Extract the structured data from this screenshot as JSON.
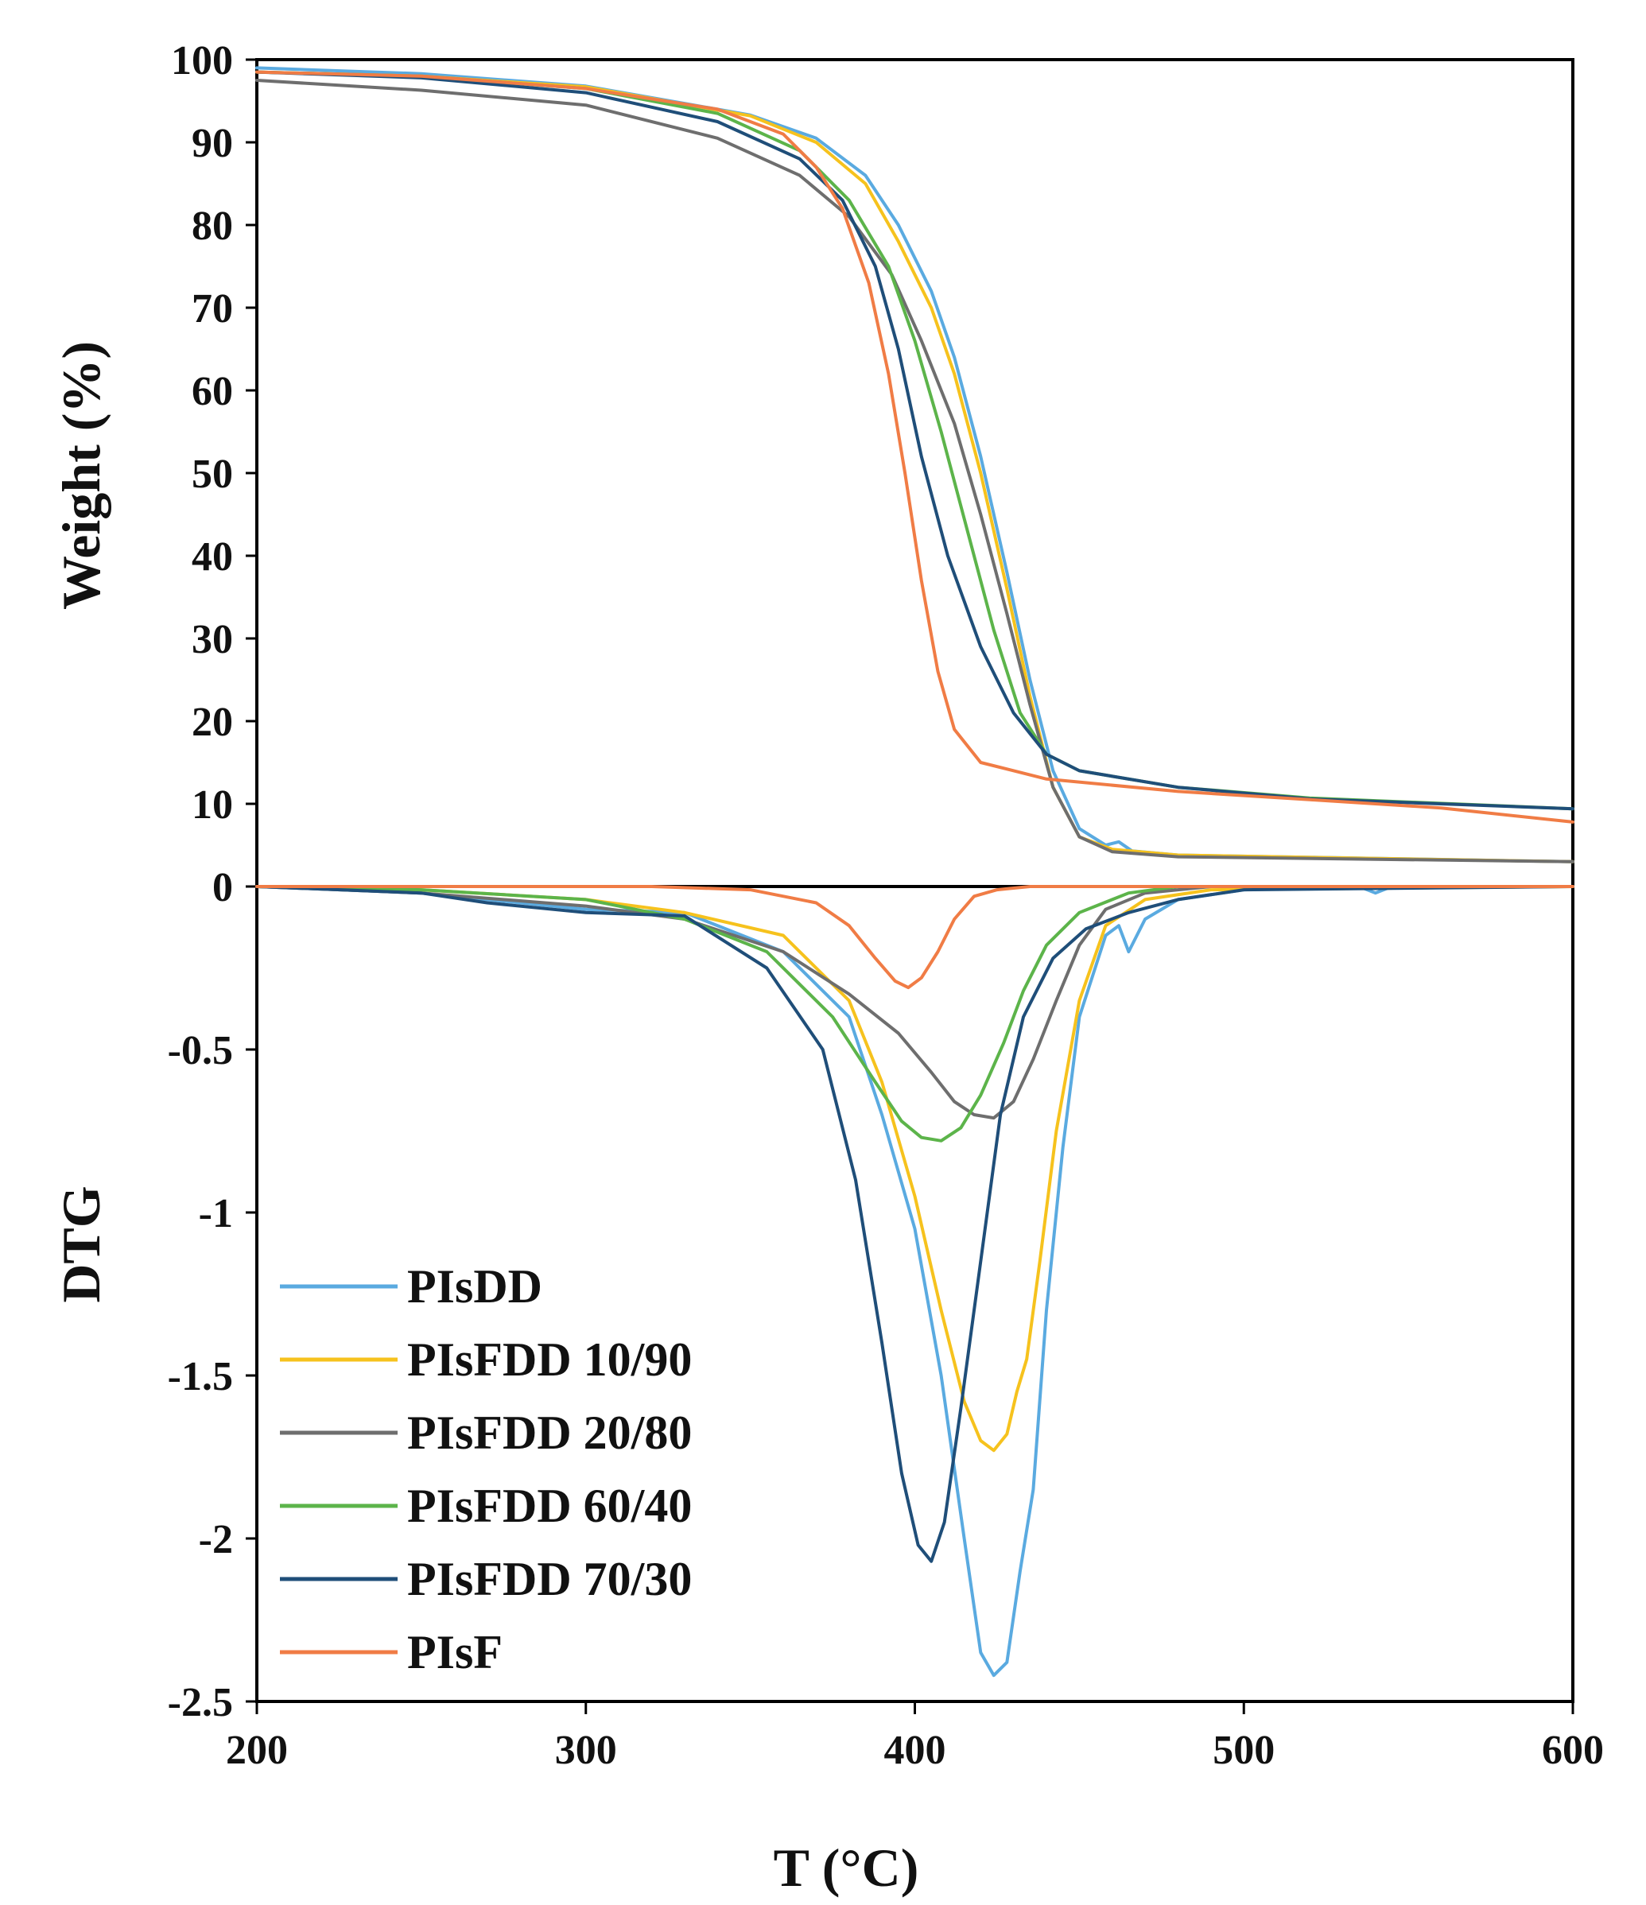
{
  "chart_data": {
    "type": "line",
    "x_label": "T (°C)",
    "x_range": [
      200,
      600
    ],
    "x_ticks": [
      "200",
      "300",
      "400",
      "500",
      "600"
    ],
    "panels": {
      "weight": {
        "ylabel": "Weight (%)",
        "ylim": [
          0,
          100
        ],
        "y_ticks": [
          "0",
          "10",
          "20",
          "30",
          "40",
          "50",
          "60",
          "70",
          "80",
          "90",
          "100"
        ]
      },
      "dtg": {
        "ylabel": "DTG",
        "ylim": [
          -2.5,
          0
        ],
        "y_ticks": [
          "0",
          "-0.5",
          "-1",
          "-1.5",
          "-2",
          "-2.5"
        ]
      }
    },
    "series": [
      {
        "name": "PIsDD",
        "color": "#5aaae0",
        "weight": [
          [
            200,
            99
          ],
          [
            250,
            98.3
          ],
          [
            300,
            96.8
          ],
          [
            350,
            93.3
          ],
          [
            370,
            90.5
          ],
          [
            385,
            86
          ],
          [
            395,
            80
          ],
          [
            405,
            72
          ],
          [
            412,
            64
          ],
          [
            420,
            52
          ],
          [
            428,
            38
          ],
          [
            435,
            25
          ],
          [
            442,
            14
          ],
          [
            450,
            7
          ],
          [
            458,
            5
          ],
          [
            462,
            5.4
          ],
          [
            466,
            4.3
          ],
          [
            480,
            3.8
          ],
          [
            540,
            3.4
          ],
          [
            600,
            3
          ]
        ],
        "dtg": [
          [
            200,
            0
          ],
          [
            250,
            -0.02
          ],
          [
            300,
            -0.07
          ],
          [
            330,
            -0.08
          ],
          [
            360,
            -0.2
          ],
          [
            380,
            -0.4
          ],
          [
            390,
            -0.7
          ],
          [
            400,
            -1.05
          ],
          [
            408,
            -1.5
          ],
          [
            415,
            -2.0
          ],
          [
            420,
            -2.35
          ],
          [
            424,
            -2.42
          ],
          [
            428,
            -2.38
          ],
          [
            432,
            -2.1
          ],
          [
            436,
            -1.85
          ],
          [
            440,
            -1.3
          ],
          [
            445,
            -0.8
          ],
          [
            450,
            -0.4
          ],
          [
            458,
            -0.15
          ],
          [
            462,
            -0.12
          ],
          [
            465,
            -0.2
          ],
          [
            470,
            -0.1
          ],
          [
            480,
            -0.04
          ],
          [
            500,
            -0.01
          ],
          [
            535,
            0
          ],
          [
            540,
            -0.02
          ],
          [
            545,
            0
          ],
          [
            600,
            0
          ]
        ]
      },
      {
        "name": "PIsFDD 10/90",
        "color": "#f6c21d",
        "weight": [
          [
            200,
            98.5
          ],
          [
            250,
            98
          ],
          [
            300,
            96.7
          ],
          [
            350,
            93.2
          ],
          [
            370,
            90
          ],
          [
            385,
            85
          ],
          [
            395,
            78
          ],
          [
            405,
            70
          ],
          [
            412,
            62
          ],
          [
            420,
            50
          ],
          [
            428,
            36
          ],
          [
            435,
            23
          ],
          [
            442,
            12
          ],
          [
            450,
            6
          ],
          [
            460,
            4.5
          ],
          [
            480,
            3.8
          ],
          [
            600,
            3
          ]
        ],
        "dtg": [
          [
            200,
            0
          ],
          [
            250,
            -0.01
          ],
          [
            300,
            -0.04
          ],
          [
            330,
            -0.08
          ],
          [
            360,
            -0.15
          ],
          [
            380,
            -0.35
          ],
          [
            390,
            -0.6
          ],
          [
            400,
            -0.95
          ],
          [
            408,
            -1.3
          ],
          [
            415,
            -1.58
          ],
          [
            420,
            -1.7
          ],
          [
            424,
            -1.73
          ],
          [
            428,
            -1.68
          ],
          [
            431,
            -1.55
          ],
          [
            434,
            -1.45
          ],
          [
            438,
            -1.15
          ],
          [
            443,
            -0.75
          ],
          [
            450,
            -0.35
          ],
          [
            458,
            -0.12
          ],
          [
            470,
            -0.04
          ],
          [
            490,
            -0.01
          ],
          [
            600,
            0
          ]
        ]
      },
      {
        "name": "PIsFDD 20/80",
        "color": "#6e6e6e",
        "weight": [
          [
            200,
            97.5
          ],
          [
            250,
            96.3
          ],
          [
            300,
            94.5
          ],
          [
            340,
            90.5
          ],
          [
            365,
            86
          ],
          [
            380,
            81
          ],
          [
            393,
            74
          ],
          [
            402,
            66
          ],
          [
            412,
            56
          ],
          [
            420,
            45
          ],
          [
            428,
            33
          ],
          [
            435,
            22
          ],
          [
            442,
            12
          ],
          [
            450,
            6
          ],
          [
            460,
            4.2
          ],
          [
            480,
            3.6
          ],
          [
            600,
            3
          ]
        ],
        "dtg": [
          [
            200,
            0
          ],
          [
            250,
            -0.02
          ],
          [
            300,
            -0.06
          ],
          [
            330,
            -0.1
          ],
          [
            360,
            -0.2
          ],
          [
            380,
            -0.33
          ],
          [
            395,
            -0.45
          ],
          [
            405,
            -0.57
          ],
          [
            412,
            -0.66
          ],
          [
            418,
            -0.7
          ],
          [
            424,
            -0.71
          ],
          [
            430,
            -0.66
          ],
          [
            436,
            -0.53
          ],
          [
            443,
            -0.35
          ],
          [
            450,
            -0.18
          ],
          [
            458,
            -0.07
          ],
          [
            470,
            -0.02
          ],
          [
            490,
            0
          ],
          [
            600,
            0
          ]
        ]
      },
      {
        "name": "PIsFDD 60/40",
        "color": "#5cb44a",
        "weight": [
          [
            200,
            98.5
          ],
          [
            250,
            98
          ],
          [
            300,
            96.5
          ],
          [
            340,
            93.5
          ],
          [
            365,
            89
          ],
          [
            380,
            83
          ],
          [
            392,
            75
          ],
          [
            400,
            66
          ],
          [
            408,
            55
          ],
          [
            416,
            43
          ],
          [
            424,
            31
          ],
          [
            432,
            21
          ],
          [
            440,
            16
          ],
          [
            450,
            14
          ],
          [
            480,
            12
          ],
          [
            520,
            10.7
          ],
          [
            600,
            9.4
          ]
        ],
        "dtg": [
          [
            200,
            0
          ],
          [
            250,
            -0.01
          ],
          [
            300,
            -0.04
          ],
          [
            330,
            -0.1
          ],
          [
            355,
            -0.2
          ],
          [
            375,
            -0.4
          ],
          [
            388,
            -0.6
          ],
          [
            396,
            -0.72
          ],
          [
            402,
            -0.77
          ],
          [
            408,
            -0.78
          ],
          [
            414,
            -0.74
          ],
          [
            420,
            -0.64
          ],
          [
            427,
            -0.48
          ],
          [
            433,
            -0.32
          ],
          [
            440,
            -0.18
          ],
          [
            450,
            -0.08
          ],
          [
            465,
            -0.02
          ],
          [
            480,
            0
          ],
          [
            600,
            0
          ]
        ]
      },
      {
        "name": "PIsFDD 70/30",
        "color": "#1f4e79",
        "weight": [
          [
            200,
            98.5
          ],
          [
            250,
            97.8
          ],
          [
            300,
            96
          ],
          [
            340,
            92.5
          ],
          [
            365,
            88
          ],
          [
            378,
            83
          ],
          [
            388,
            75
          ],
          [
            395,
            65
          ],
          [
            402,
            52
          ],
          [
            410,
            40
          ],
          [
            420,
            29
          ],
          [
            430,
            21
          ],
          [
            440,
            16
          ],
          [
            450,
            14
          ],
          [
            480,
            12
          ],
          [
            520,
            10.6
          ],
          [
            600,
            9.4
          ]
        ],
        "dtg": [
          [
            200,
            0
          ],
          [
            250,
            -0.02
          ],
          [
            270,
            -0.05
          ],
          [
            300,
            -0.08
          ],
          [
            330,
            -0.09
          ],
          [
            355,
            -0.25
          ],
          [
            372,
            -0.5
          ],
          [
            382,
            -0.9
          ],
          [
            390,
            -1.4
          ],
          [
            396,
            -1.8
          ],
          [
            401,
            -2.02
          ],
          [
            405,
            -2.07
          ],
          [
            409,
            -1.95
          ],
          [
            414,
            -1.6
          ],
          [
            420,
            -1.15
          ],
          [
            426,
            -0.7
          ],
          [
            433,
            -0.4
          ],
          [
            442,
            -0.22
          ],
          [
            452,
            -0.13
          ],
          [
            465,
            -0.08
          ],
          [
            480,
            -0.04
          ],
          [
            500,
            -0.01
          ],
          [
            600,
            0
          ]
        ]
      },
      {
        "name": "PIsF",
        "color": "#f07c45",
        "weight": [
          [
            200,
            98.5
          ],
          [
            250,
            98
          ],
          [
            300,
            96.5
          ],
          [
            340,
            94
          ],
          [
            360,
            91
          ],
          [
            370,
            87
          ],
          [
            378,
            82
          ],
          [
            386,
            73
          ],
          [
            392,
            62
          ],
          [
            397,
            50
          ],
          [
            402,
            37
          ],
          [
            407,
            26
          ],
          [
            412,
            19
          ],
          [
            420,
            15
          ],
          [
            440,
            13
          ],
          [
            480,
            11.5
          ],
          [
            520,
            10.5
          ],
          [
            560,
            9.5
          ],
          [
            600,
            7.8
          ]
        ],
        "dtg": [
          [
            200,
            0
          ],
          [
            320,
            0
          ],
          [
            350,
            -0.01
          ],
          [
            370,
            -0.05
          ],
          [
            380,
            -0.12
          ],
          [
            388,
            -0.22
          ],
          [
            394,
            -0.29
          ],
          [
            398,
            -0.31
          ],
          [
            402,
            -0.28
          ],
          [
            407,
            -0.2
          ],
          [
            412,
            -0.1
          ],
          [
            418,
            -0.03
          ],
          [
            425,
            -0.01
          ],
          [
            435,
            0
          ],
          [
            600,
            0
          ]
        ]
      }
    ],
    "legend": {
      "placement": "bottom-left of DTG panel",
      "entries": [
        "PIsDD",
        "PIsFDD 10/90",
        "PIsFDD 20/80",
        "PIsFDD 60/40",
        "PIsFDD 70/30",
        "PIsF"
      ]
    }
  }
}
